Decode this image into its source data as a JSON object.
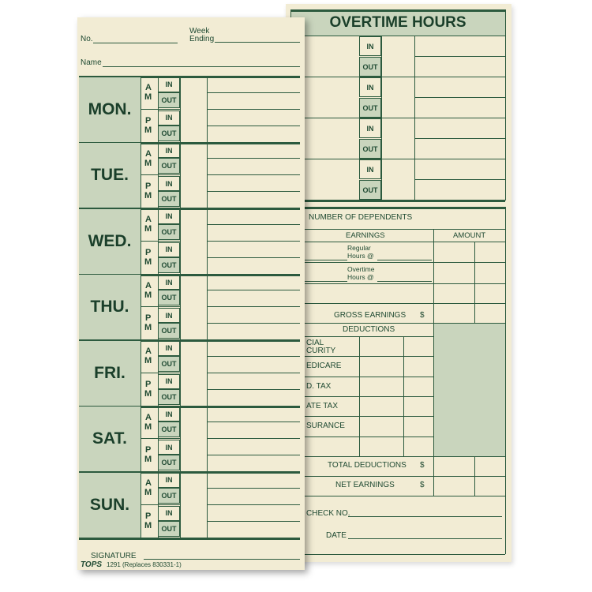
{
  "front": {
    "no_label": "No.",
    "week_ending_label": "Week Ending",
    "name_label": "Name",
    "days": [
      "MON.",
      "TUE.",
      "WED.",
      "THU.",
      "FRI.",
      "SAT.",
      "SUN."
    ],
    "am": [
      "A",
      "M"
    ],
    "pm": [
      "P",
      "M"
    ],
    "in_label": "IN",
    "out_label": "OUT",
    "signature_label": "SIGNATURE",
    "brand": "TOPS",
    "form_code": "1291 (Replaces 830331-1)"
  },
  "back": {
    "title": "OVERTIME HOURS",
    "dependents_label": "NUMBER OF DEPENDENTS",
    "earnings_label": "EARNINGS",
    "amount_label": "AMOUNT",
    "regular_label": [
      "Regular",
      "Hours @"
    ],
    "overtime_label": [
      "Overtime",
      "Hours @"
    ],
    "gross_label": "GROSS EARNINGS",
    "deductions_label": "DEDUCTIONS",
    "deduction_items": [
      [
        "CIAL",
        "CURITY"
      ],
      [
        "EDICARE"
      ],
      [
        "D. TAX"
      ],
      [
        "ATE TAX"
      ],
      [
        "SURANCE"
      ],
      [
        ""
      ]
    ],
    "total_deductions_label": "TOTAL DEDUCTIONS",
    "net_earnings_label": "NET EARNINGS",
    "dollar": "$",
    "check_no_label": "CHECK NO.",
    "date_label": "DATE"
  },
  "colors": {
    "paper": "#f2ecd4",
    "ink": "#2c5a3e",
    "shade": "#c9d5bd"
  }
}
